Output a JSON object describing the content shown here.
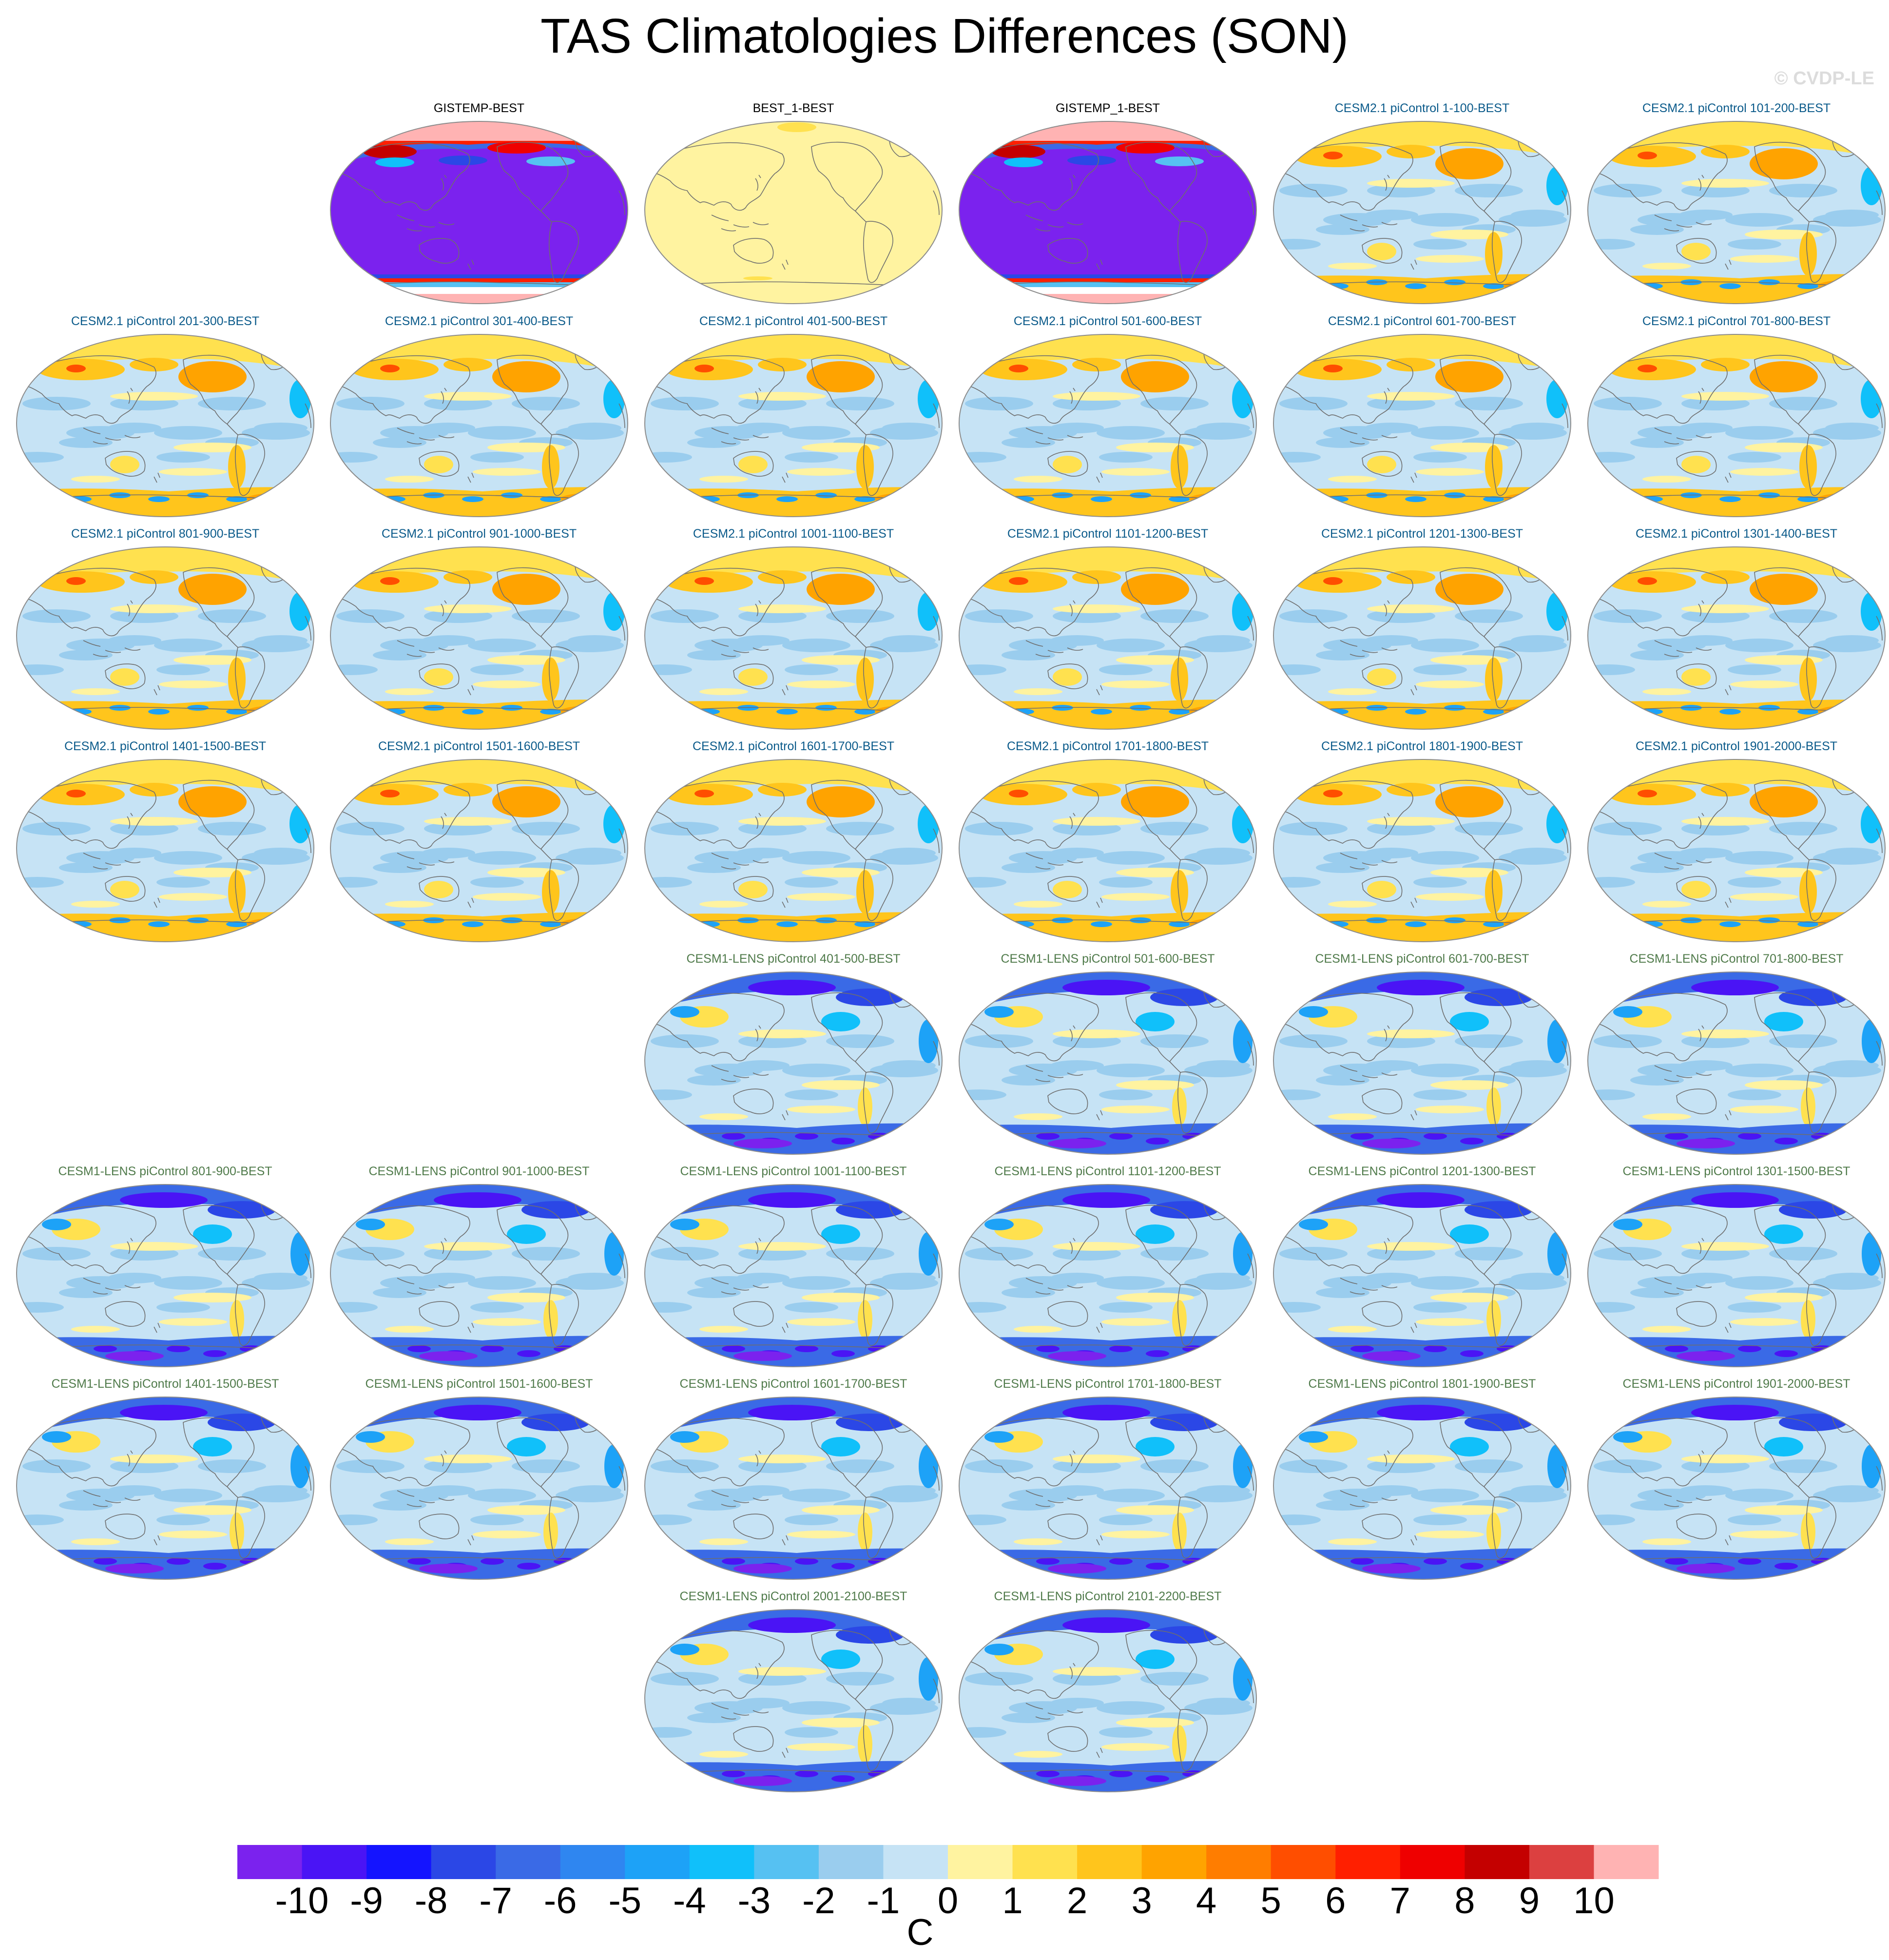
{
  "title": "TAS Climatologies Differences (SON)",
  "copyright": "© CVDP-LE",
  "colors": {
    "cesm2_title": "#0a5a8a",
    "lens_title": "#4f7a4a",
    "obs_title": "#000000",
    "coast": "#6e6e6e",
    "map_border": "#8c8c8c"
  },
  "chart_data": {
    "type": "heatmap",
    "projection": "robinson",
    "colorbar": {
      "units": "C",
      "tick_labels": [
        "-10",
        "-9",
        "-8",
        "-7",
        "-6",
        "-5",
        "-4",
        "-3",
        "-2",
        "-1",
        "0",
        "1",
        "2",
        "3",
        "4",
        "5",
        "6",
        "7",
        "8",
        "9",
        "10"
      ],
      "colors": [
        "#7b22ee",
        "#4a14f5",
        "#1414ff",
        "#2b47e6",
        "#3a6ae6",
        "#2f86f0",
        "#1da2f7",
        "#10c0fa",
        "#56c1f2",
        "#9acdee",
        "#c6e3f5",
        "#fff3a0",
        "#ffe14f",
        "#ffc51c",
        "#ffa300",
        "#ff7d00",
        "#ff4e00",
        "#ff1f00",
        "#ef0000",
        "#c40000",
        "#dc4040",
        "#ffb3b3"
      ]
    },
    "panels": [
      {
        "label": "GISTEMP-BEST",
        "group": "obs",
        "row": 0,
        "col": 1,
        "pattern": "gistemp"
      },
      {
        "label": "BEST_1-BEST",
        "group": "obs",
        "row": 0,
        "col": 2,
        "pattern": "best"
      },
      {
        "label": "GISTEMP_1-BEST",
        "group": "obs",
        "row": 0,
        "col": 3,
        "pattern": "gistemp"
      },
      {
        "label": "CESM2.1 piControl 1-100-BEST",
        "group": "cesm2",
        "row": 0,
        "col": 4,
        "pattern": "cesm2"
      },
      {
        "label": "CESM2.1 piControl 101-200-BEST",
        "group": "cesm2",
        "row": 0,
        "col": 5,
        "pattern": "cesm2"
      },
      {
        "label": "CESM2.1 piControl 201-300-BEST",
        "group": "cesm2",
        "row": 1,
        "col": 0,
        "pattern": "cesm2"
      },
      {
        "label": "CESM2.1 piControl 301-400-BEST",
        "group": "cesm2",
        "row": 1,
        "col": 1,
        "pattern": "cesm2"
      },
      {
        "label": "CESM2.1 piControl 401-500-BEST",
        "group": "cesm2",
        "row": 1,
        "col": 2,
        "pattern": "cesm2"
      },
      {
        "label": "CESM2.1 piControl 501-600-BEST",
        "group": "cesm2",
        "row": 1,
        "col": 3,
        "pattern": "cesm2"
      },
      {
        "label": "CESM2.1 piControl 601-700-BEST",
        "group": "cesm2",
        "row": 1,
        "col": 4,
        "pattern": "cesm2"
      },
      {
        "label": "CESM2.1 piControl 701-800-BEST",
        "group": "cesm2",
        "row": 1,
        "col": 5,
        "pattern": "cesm2"
      },
      {
        "label": "CESM2.1 piControl 801-900-BEST",
        "group": "cesm2",
        "row": 2,
        "col": 0,
        "pattern": "cesm2"
      },
      {
        "label": "CESM2.1 piControl 901-1000-BEST",
        "group": "cesm2",
        "row": 2,
        "col": 1,
        "pattern": "cesm2"
      },
      {
        "label": "CESM2.1 piControl 1001-1100-BEST",
        "group": "cesm2",
        "row": 2,
        "col": 2,
        "pattern": "cesm2"
      },
      {
        "label": "CESM2.1 piControl 1101-1200-BEST",
        "group": "cesm2",
        "row": 2,
        "col": 3,
        "pattern": "cesm2"
      },
      {
        "label": "CESM2.1 piControl 1201-1300-BEST",
        "group": "cesm2",
        "row": 2,
        "col": 4,
        "pattern": "cesm2"
      },
      {
        "label": "CESM2.1 piControl 1301-1400-BEST",
        "group": "cesm2",
        "row": 2,
        "col": 5,
        "pattern": "cesm2"
      },
      {
        "label": "CESM2.1 piControl 1401-1500-BEST",
        "group": "cesm2",
        "row": 3,
        "col": 0,
        "pattern": "cesm2"
      },
      {
        "label": "CESM2.1 piControl 1501-1600-BEST",
        "group": "cesm2",
        "row": 3,
        "col": 1,
        "pattern": "cesm2"
      },
      {
        "label": "CESM2.1 piControl 1601-1700-BEST",
        "group": "cesm2",
        "row": 3,
        "col": 2,
        "pattern": "cesm2"
      },
      {
        "label": "CESM2.1 piControl 1701-1800-BEST",
        "group": "cesm2",
        "row": 3,
        "col": 3,
        "pattern": "cesm2"
      },
      {
        "label": "CESM2.1 piControl 1801-1900-BEST",
        "group": "cesm2",
        "row": 3,
        "col": 4,
        "pattern": "cesm2"
      },
      {
        "label": "CESM2.1 piControl 1901-2000-BEST",
        "group": "cesm2",
        "row": 3,
        "col": 5,
        "pattern": "cesm2"
      },
      {
        "label": "CESM1-LENS piControl 401-500-BEST",
        "group": "lens",
        "row": 4,
        "col": 2,
        "pattern": "lens"
      },
      {
        "label": "CESM1-LENS piControl 501-600-BEST",
        "group": "lens",
        "row": 4,
        "col": 3,
        "pattern": "lens"
      },
      {
        "label": "CESM1-LENS piControl 601-700-BEST",
        "group": "lens",
        "row": 4,
        "col": 4,
        "pattern": "lens"
      },
      {
        "label": "CESM1-LENS piControl 701-800-BEST",
        "group": "lens",
        "row": 4,
        "col": 5,
        "pattern": "lens"
      },
      {
        "label": "CESM1-LENS piControl 801-900-BEST",
        "group": "lens",
        "row": 5,
        "col": 0,
        "pattern": "lens"
      },
      {
        "label": "CESM1-LENS piControl 901-1000-BEST",
        "group": "lens",
        "row": 5,
        "col": 1,
        "pattern": "lens"
      },
      {
        "label": "CESM1-LENS piControl 1001-1100-BEST",
        "group": "lens",
        "row": 5,
        "col": 2,
        "pattern": "lens"
      },
      {
        "label": "CESM1-LENS piControl 1101-1200-BEST",
        "group": "lens",
        "row": 5,
        "col": 3,
        "pattern": "lens"
      },
      {
        "label": "CESM1-LENS piControl 1201-1300-BEST",
        "group": "lens",
        "row": 5,
        "col": 4,
        "pattern": "lens"
      },
      {
        "label": "CESM1-LENS piControl 1301-1500-BEST",
        "group": "lens",
        "row": 5,
        "col": 5,
        "pattern": "lens"
      },
      {
        "label": "CESM1-LENS piControl 1401-1500-BEST",
        "group": "lens",
        "row": 6,
        "col": 0,
        "pattern": "lens"
      },
      {
        "label": "CESM1-LENS piControl 1501-1600-BEST",
        "group": "lens",
        "row": 6,
        "col": 1,
        "pattern": "lens"
      },
      {
        "label": "CESM1-LENS piControl 1601-1700-BEST",
        "group": "lens",
        "row": 6,
        "col": 2,
        "pattern": "lens"
      },
      {
        "label": "CESM1-LENS piControl 1701-1800-BEST",
        "group": "lens",
        "row": 6,
        "col": 3,
        "pattern": "lens"
      },
      {
        "label": "CESM1-LENS piControl 1801-1900-BEST",
        "group": "lens",
        "row": 6,
        "col": 4,
        "pattern": "lens"
      },
      {
        "label": "CESM1-LENS piControl 1901-2000-BEST",
        "group": "lens",
        "row": 6,
        "col": 5,
        "pattern": "lens"
      },
      {
        "label": "CESM1-LENS piControl 2001-2100-BEST",
        "group": "lens",
        "row": 7,
        "col": 2,
        "pattern": "lens"
      },
      {
        "label": "CESM1-LENS piControl 2101-2200-BEST",
        "group": "lens",
        "row": 7,
        "col": 3,
        "pattern": "lens"
      }
    ]
  }
}
